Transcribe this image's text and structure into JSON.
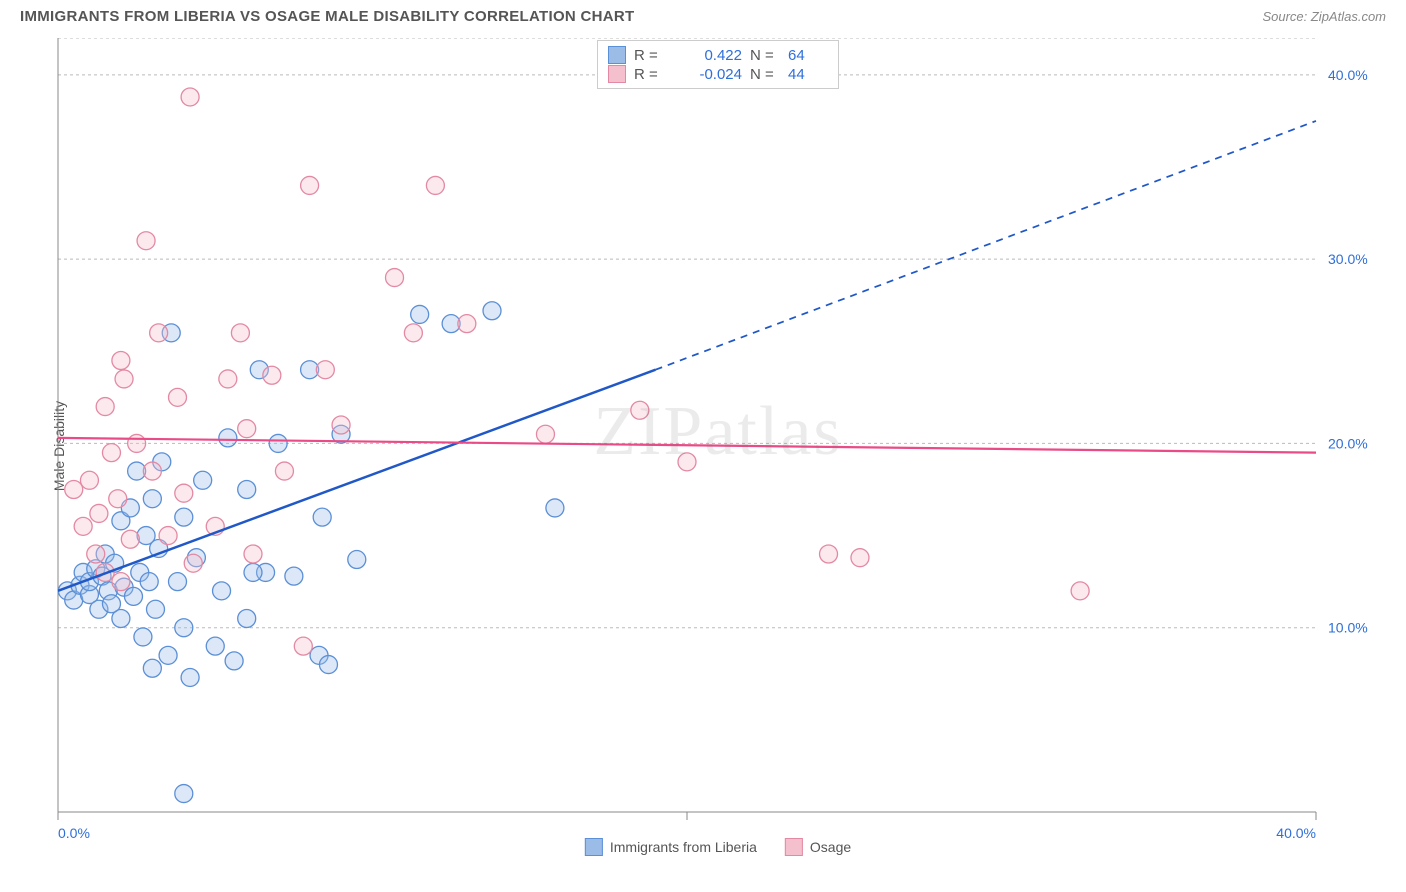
{
  "title": "IMMIGRANTS FROM LIBERIA VS OSAGE MALE DISABILITY CORRELATION CHART",
  "source": "Source: ZipAtlas.com",
  "watermark": "ZIPatlas",
  "y_axis_label": "Male Disability",
  "chart": {
    "type": "scatter",
    "xlim": [
      0,
      40
    ],
    "ylim": [
      0,
      42
    ],
    "x_ticks": [
      0,
      40
    ],
    "x_tick_labels": [
      "0.0%",
      "40.0%"
    ],
    "y_ticks": [
      10,
      20,
      30,
      40
    ],
    "y_tick_labels": [
      "10.0%",
      "20.0%",
      "30.0%",
      "40.0%"
    ],
    "grid_y": [
      10,
      20,
      30,
      40,
      42
    ],
    "background_color": "#ffffff",
    "grid_color": "#bbbbbb",
    "marker_radius": 9,
    "marker_fill_opacity": 0.35,
    "marker_stroke_width": 1.3,
    "series": [
      {
        "name": "Immigrants from Liberia",
        "color_fill": "#9cbce8",
        "color_stroke": "#5b8fd6",
        "R": "0.422",
        "N": "64",
        "trend": {
          "x1": 0,
          "y1": 12,
          "x2": 19,
          "y2": 24,
          "dash_x2": 40,
          "dash_y2": 37.5,
          "color": "#2058c7",
          "width": 2.5
        },
        "points": [
          [
            0.3,
            12
          ],
          [
            0.5,
            11.5
          ],
          [
            0.7,
            12.3
          ],
          [
            0.8,
            13
          ],
          [
            1,
            11.8
          ],
          [
            1,
            12.5
          ],
          [
            1.2,
            13.2
          ],
          [
            1.3,
            11
          ],
          [
            1.4,
            12.8
          ],
          [
            1.5,
            14
          ],
          [
            1.6,
            12
          ],
          [
            1.7,
            11.3
          ],
          [
            1.8,
            13.5
          ],
          [
            2,
            10.5
          ],
          [
            2,
            15.8
          ],
          [
            2.1,
            12.2
          ],
          [
            2.3,
            16.5
          ],
          [
            2.4,
            11.7
          ],
          [
            2.5,
            18.5
          ],
          [
            2.6,
            13
          ],
          [
            2.7,
            9.5
          ],
          [
            2.8,
            15
          ],
          [
            2.9,
            12.5
          ],
          [
            3,
            7.8
          ],
          [
            3,
            17
          ],
          [
            3.1,
            11
          ],
          [
            3.2,
            14.3
          ],
          [
            3.3,
            19
          ],
          [
            3.5,
            8.5
          ],
          [
            3.6,
            26
          ],
          [
            3.8,
            12.5
          ],
          [
            4,
            10
          ],
          [
            4,
            16
          ],
          [
            4.2,
            7.3
          ],
          [
            4.4,
            13.8
          ],
          [
            4.6,
            18
          ],
          [
            5,
            9
          ],
          [
            5.2,
            12
          ],
          [
            5.4,
            20.3
          ],
          [
            5.6,
            8.2
          ],
          [
            6,
            17.5
          ],
          [
            6,
            10.5
          ],
          [
            6.4,
            24
          ],
          [
            6.6,
            13
          ],
          [
            7,
            20
          ],
          [
            7.5,
            12.8
          ],
          [
            8,
            24
          ],
          [
            8.3,
            8.5
          ],
          [
            8.4,
            16
          ],
          [
            8.6,
            8
          ],
          [
            9,
            20.5
          ],
          [
            9.5,
            13.7
          ],
          [
            11.5,
            27
          ],
          [
            12.5,
            26.5
          ],
          [
            13.8,
            27.2
          ],
          [
            15.8,
            16.5
          ],
          [
            4,
            1
          ],
          [
            6.2,
            13
          ]
        ]
      },
      {
        "name": "Osage",
        "color_fill": "#f4c0cd",
        "color_stroke": "#e389a3",
        "R": "-0.024",
        "N": "44",
        "trend": {
          "x1": 0,
          "y1": 20.3,
          "x2": 40,
          "y2": 19.5,
          "color": "#e94b86",
          "width": 2.2
        },
        "points": [
          [
            0.5,
            17.5
          ],
          [
            0.8,
            15.5
          ],
          [
            1,
            18
          ],
          [
            1.2,
            14
          ],
          [
            1.3,
            16.2
          ],
          [
            1.5,
            22
          ],
          [
            1.7,
            19.5
          ],
          [
            1.9,
            17
          ],
          [
            2,
            12.5
          ],
          [
            2.1,
            23.5
          ],
          [
            2.3,
            14.8
          ],
          [
            2.5,
            20
          ],
          [
            2.8,
            31
          ],
          [
            3,
            18.5
          ],
          [
            3.2,
            26
          ],
          [
            3.5,
            15
          ],
          [
            3.8,
            22.5
          ],
          [
            4,
            17.3
          ],
          [
            4.3,
            13.5
          ],
          [
            4.2,
            38.8
          ],
          [
            5.4,
            23.5
          ],
          [
            5.8,
            26
          ],
          [
            6,
            20.8
          ],
          [
            6.2,
            14
          ],
          [
            6.8,
            23.7
          ],
          [
            7.2,
            18.5
          ],
          [
            7.8,
            9
          ],
          [
            8,
            34
          ],
          [
            8.5,
            24
          ],
          [
            9,
            21
          ],
          [
            10.7,
            29
          ],
          [
            11.3,
            26
          ],
          [
            12,
            34
          ],
          [
            13,
            26.5
          ],
          [
            15.5,
            20.5
          ],
          [
            18.5,
            21.8
          ],
          [
            20,
            19
          ],
          [
            24.5,
            14
          ],
          [
            25.5,
            13.8
          ],
          [
            32.5,
            12
          ],
          [
            1.5,
            13
          ],
          [
            2,
            24.5
          ],
          [
            5,
            15.5
          ]
        ]
      }
    ]
  },
  "legend_value_color": "#2e6fd9"
}
